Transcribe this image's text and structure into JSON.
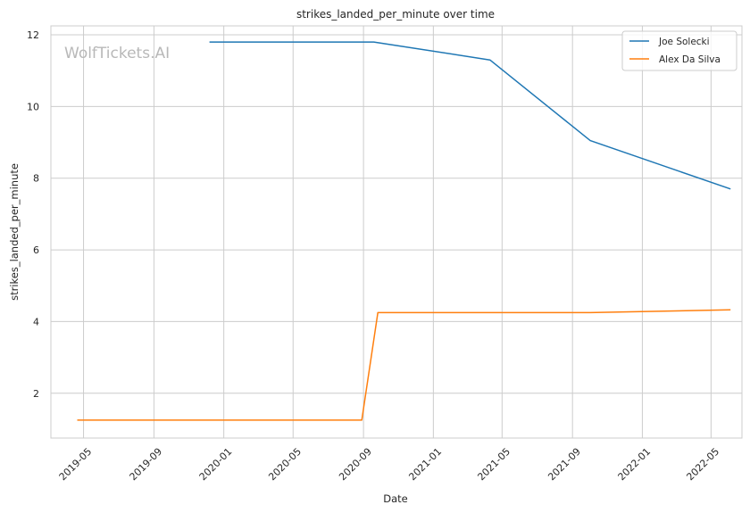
{
  "chart_data": {
    "type": "line",
    "title": "strikes_landed_per_minute over time",
    "xlabel": "Date",
    "ylabel": "strikes_landed_per_minute",
    "watermark": "WolfTickets.AI",
    "x_ticks": [
      "2019-05",
      "2019-09",
      "2020-01",
      "2020-05",
      "2020-09",
      "2021-01",
      "2021-05",
      "2021-09",
      "2022-01",
      "2022-05"
    ],
    "y_ticks": [
      2,
      4,
      6,
      8,
      10,
      12
    ],
    "xlim": [
      "2019-03-05",
      "2022-06-24"
    ],
    "ylim": [
      0.75,
      12.25
    ],
    "grid": true,
    "legend_position": "top-right",
    "series": [
      {
        "name": "Joe Solecki",
        "color": "#1f77b4",
        "points": [
          {
            "x": "2019-12-07",
            "y": 11.8
          },
          {
            "x": "2020-09-19",
            "y": 11.8
          },
          {
            "x": "2021-04-10",
            "y": 11.3
          },
          {
            "x": "2021-10-02",
            "y": 9.05
          },
          {
            "x": "2022-06-04",
            "y": 7.7
          }
        ]
      },
      {
        "name": "Alex Da Silva",
        "color": "#ff7f0e",
        "points": [
          {
            "x": "2019-04-20",
            "y": 1.25
          },
          {
            "x": "2020-08-29",
            "y": 1.25
          },
          {
            "x": "2020-09-26",
            "y": 4.25
          },
          {
            "x": "2021-10-02",
            "y": 4.25
          },
          {
            "x": "2022-06-04",
            "y": 4.33
          }
        ]
      }
    ]
  }
}
